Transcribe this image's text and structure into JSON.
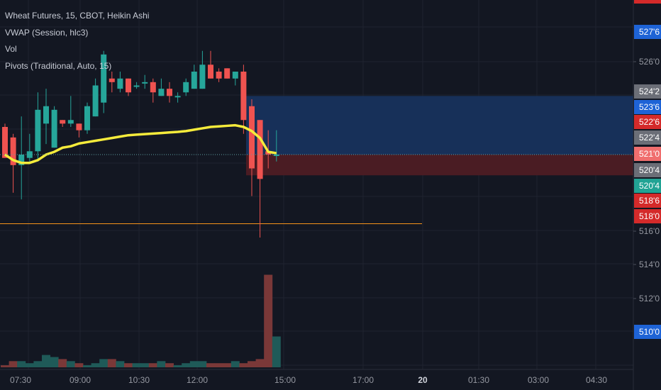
{
  "legend": {
    "title": "Wheat Futures, 15, CBOT, Heikin Ashi",
    "study1": "VWAP (Session, hlc3)",
    "study2": "Vol",
    "study3": "Pivots (Traditional, Auto, 15)"
  },
  "colors": {
    "background": "#131722",
    "grid": "#1f2330",
    "up": "#26a69a",
    "down": "#ef5350",
    "vwap": "#f5eb3b",
    "pivot": "#f7931a",
    "position_profit": "#173059",
    "position_loss": "#4a1c23",
    "axis_text": "#9598a1"
  },
  "price_axis": {
    "ticks": [
      "526'0",
      "516'0",
      "514'0",
      "512'0"
    ],
    "labels": [
      {
        "text": "527'6",
        "bg": "#1e63d6"
      },
      {
        "text": "524'2",
        "bg": "#6b6e77"
      },
      {
        "text": "523'6",
        "bg": "#1e63d6"
      },
      {
        "text": "522'6",
        "bg": "#d42a2a"
      },
      {
        "text": "522'4",
        "bg": "#6b6e77"
      },
      {
        "text": "521'0",
        "bg": "#f06e6e"
      },
      {
        "text": "520'4",
        "bg": "#6b6e77"
      },
      {
        "text": "520'4",
        "bg": "#21a394"
      },
      {
        "text": "518'6",
        "bg": "#d42a2a"
      },
      {
        "text": "518'0",
        "bg": "#d42a2a"
      },
      {
        "text": "510'0",
        "bg": "#1e63d6"
      }
    ]
  },
  "time_axis": {
    "labels": [
      "07:30",
      "09:00",
      "10:30",
      "12:00",
      "15:00",
      "17:00",
      "20",
      "01:30",
      "03:00",
      "04:30"
    ]
  },
  "chart_data": {
    "type": "candlestick",
    "series": [
      {
        "o": 522.0,
        "h": 522.12,
        "l": 520.88,
        "c": 520.88
      },
      {
        "o": 521.62,
        "h": 521.75,
        "l": 519.62,
        "c": 520.62
      },
      {
        "o": 520.62,
        "h": 522.38,
        "l": 519.38,
        "c": 521.0
      },
      {
        "o": 520.88,
        "h": 521.75,
        "l": 520.75,
        "c": 521.12
      },
      {
        "o": 521.12,
        "h": 523.25,
        "l": 520.75,
        "c": 522.62
      },
      {
        "o": 522.12,
        "h": 523.38,
        "l": 521.38,
        "c": 522.75
      },
      {
        "o": 521.25,
        "h": 522.75,
        "l": 521.25,
        "c": 522.62
      },
      {
        "o": 522.25,
        "h": 522.25,
        "l": 522.0,
        "c": 522.12
      },
      {
        "o": 522.12,
        "h": 523.12,
        "l": 522.0,
        "c": 522.25
      },
      {
        "o": 522.12,
        "h": 522.12,
        "l": 521.62,
        "c": 521.88
      },
      {
        "o": 521.88,
        "h": 522.88,
        "l": 521.75,
        "c": 522.75
      },
      {
        "o": 522.38,
        "h": 523.75,
        "l": 522.38,
        "c": 523.5
      },
      {
        "o": 522.88,
        "h": 524.75,
        "l": 522.5,
        "c": 524.62
      },
      {
        "o": 523.75,
        "h": 524.0,
        "l": 523.25,
        "c": 523.62
      },
      {
        "o": 523.38,
        "h": 524.0,
        "l": 523.25,
        "c": 523.75
      },
      {
        "o": 523.75,
        "h": 523.75,
        "l": 523.12,
        "c": 523.25
      },
      {
        "o": 523.5,
        "h": 523.62,
        "l": 523.38,
        "c": 523.5
      },
      {
        "o": 523.62,
        "h": 523.88,
        "l": 523.38,
        "c": 523.62
      },
      {
        "o": 523.62,
        "h": 523.75,
        "l": 522.88,
        "c": 523.25
      },
      {
        "o": 523.12,
        "h": 523.75,
        "l": 523.12,
        "c": 523.38
      },
      {
        "o": 523.38,
        "h": 523.62,
        "l": 522.88,
        "c": 523.12
      },
      {
        "o": 523.12,
        "h": 523.25,
        "l": 522.88,
        "c": 523.12
      },
      {
        "o": 523.25,
        "h": 523.75,
        "l": 523.12,
        "c": 523.62
      },
      {
        "o": 523.38,
        "h": 524.25,
        "l": 523.38,
        "c": 524.0
      },
      {
        "o": 523.38,
        "h": 524.75,
        "l": 523.38,
        "c": 524.25
      },
      {
        "o": 524.25,
        "h": 524.75,
        "l": 523.75,
        "c": 523.75
      },
      {
        "o": 524.0,
        "h": 524.12,
        "l": 523.62,
        "c": 523.75
      },
      {
        "o": 524.12,
        "h": 524.12,
        "l": 523.75,
        "c": 523.75
      },
      {
        "o": 523.75,
        "h": 524.0,
        "l": 523.5,
        "c": 524.0
      },
      {
        "o": 524.0,
        "h": 524.25,
        "l": 521.75,
        "c": 522.25
      },
      {
        "o": 522.75,
        "h": 523.0,
        "l": 519.5,
        "c": 520.5
      },
      {
        "o": 522.25,
        "h": 522.25,
        "l": 518.0,
        "c": 520.12
      },
      {
        "o": 521.12,
        "h": 521.88,
        "l": 520.5,
        "c": 521.0
      },
      {
        "o": 521.0,
        "h": 521.88,
        "l": 520.75,
        "c": 521.0
      }
    ],
    "vwap": [
      521.0,
      520.8,
      520.7,
      520.7,
      520.8,
      521.0,
      521.1,
      521.25,
      521.3,
      521.4,
      521.45,
      521.5,
      521.55,
      521.6,
      521.65,
      521.7,
      521.72,
      521.74,
      521.76,
      521.78,
      521.8,
      521.82,
      521.85,
      521.9,
      521.95,
      522.0,
      522.02,
      522.04,
      522.06,
      522.0,
      521.85,
      521.6,
      521.1,
      521.05
    ],
    "volume": [
      1,
      3,
      3,
      2,
      3,
      6,
      5,
      4,
      3,
      2,
      1,
      2,
      4,
      4,
      3,
      2,
      2,
      2,
      2,
      3,
      2,
      1,
      2,
      3,
      3,
      2,
      2,
      2,
      3,
      2,
      3,
      4,
      45,
      15
    ],
    "pivot_line": 518.5,
    "position": {
      "entry": 521.0,
      "target": 523.12,
      "stop": 520.25
    },
    "last_price": 521.0
  }
}
